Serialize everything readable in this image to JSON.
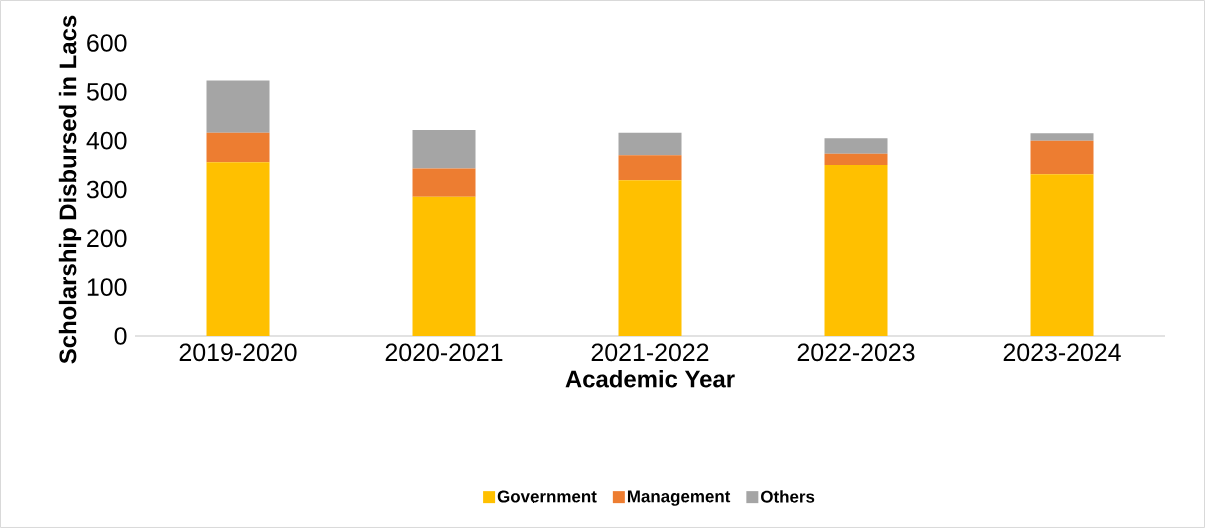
{
  "chart_data": {
    "type": "bar",
    "stacked": true,
    "xlabel": "Academic Year",
    "ylabel": "Scholarship Disbursed in Lacs",
    "categories": [
      "2019-2020",
      "2020-2021",
      "2021-2022",
      "2022-2023",
      "2023-2024"
    ],
    "series": [
      {
        "name": "Government",
        "color": "#ffc000",
        "values": [
          356,
          285,
          319,
          350,
          331
        ]
      },
      {
        "name": "Management",
        "color": "#ed7d31",
        "values": [
          60,
          58,
          51,
          23,
          69
        ]
      },
      {
        "name": "Others",
        "color": "#a5a5a5",
        "values": [
          107,
          79,
          46,
          32,
          15
        ]
      }
    ],
    "ylim": [
      0,
      600
    ],
    "yticks": [
      0,
      100,
      200,
      300,
      400,
      500,
      600
    ],
    "legend": "bottom"
  }
}
